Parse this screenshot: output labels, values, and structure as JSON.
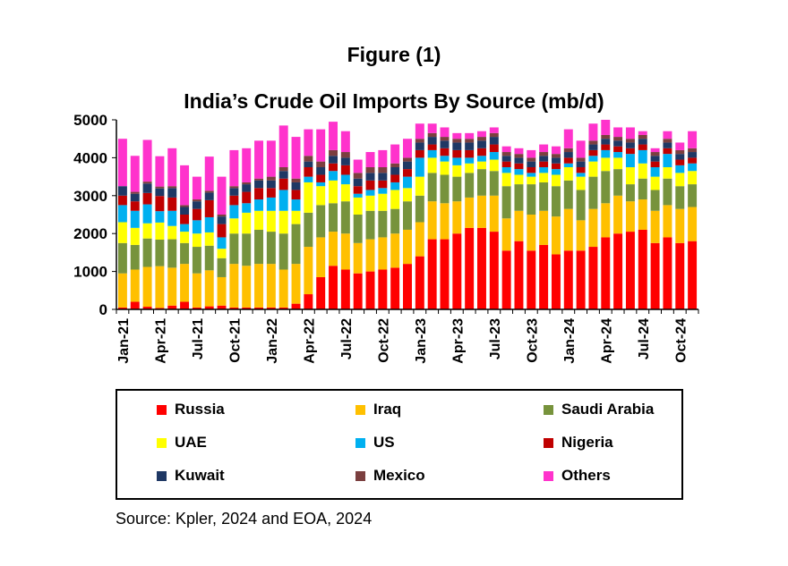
{
  "figure_label": "Figure (1)",
  "source": "Source: Kpler, 2024 and EOA, 2024",
  "chart_data": {
    "type": "bar",
    "stacked": true,
    "title": "India’s Crude Oil Imports By Source (mb/d)",
    "xlabel": "",
    "ylabel": "",
    "ylim": [
      0,
      5000
    ],
    "yticks": [
      0,
      1000,
      2000,
      3000,
      4000,
      5000
    ],
    "grid": false,
    "legend_position": "bottom",
    "x_tick_labels": [
      "Jan-21",
      "Apr-21",
      "Jul-21",
      "Oct-21",
      "Jan-22",
      "Apr-22",
      "Jul-22",
      "Oct-22",
      "Jan-23",
      "Apr-23",
      "Jul-23",
      "Oct-23",
      "Jan-24",
      "Apr-24",
      "Jul-24",
      "Oct-24"
    ],
    "categories": [
      "Jan-21",
      "Feb-21",
      "Mar-21",
      "Apr-21",
      "May-21",
      "Jun-21",
      "Jul-21",
      "Aug-21",
      "Sep-21",
      "Oct-21",
      "Nov-21",
      "Dec-21",
      "Jan-22",
      "Feb-22",
      "Mar-22",
      "Apr-22",
      "May-22",
      "Jun-22",
      "Jul-22",
      "Aug-22",
      "Sep-22",
      "Oct-22",
      "Nov-22",
      "Dec-22",
      "Jan-23",
      "Feb-23",
      "Mar-23",
      "Apr-23",
      "May-23",
      "Jun-23",
      "Jul-23",
      "Aug-23",
      "Sep-23",
      "Oct-23",
      "Nov-23",
      "Dec-23",
      "Jan-24",
      "Feb-24",
      "Mar-24",
      "Apr-24",
      "May-24",
      "Jun-24",
      "Jul-24",
      "Aug-24",
      "Sep-24",
      "Oct-24",
      "Nov-24"
    ],
    "series": [
      {
        "name": "Russia",
        "color": "#ff0000",
        "values": [
          50,
          200,
          70,
          40,
          100,
          200,
          50,
          80,
          100,
          50,
          50,
          50,
          50,
          50,
          150,
          400,
          850,
          1150,
          1050,
          950,
          1000,
          1050,
          1100,
          1200,
          1400,
          1850,
          1850,
          2000,
          2150,
          2150,
          2050,
          1550,
          1800,
          1550,
          1700,
          1450,
          1550,
          1550,
          1650,
          1900,
          2000,
          2050,
          2100,
          1750,
          1900,
          1750,
          1800
        ]
      },
      {
        "name": "Iraq",
        "color": "#ffc000",
        "values": [
          900,
          850,
          1050,
          1100,
          1000,
          1000,
          900,
          950,
          750,
          1150,
          1100,
          1150,
          1150,
          1000,
          1050,
          1250,
          1050,
          900,
          950,
          800,
          850,
          850,
          900,
          900,
          900,
          1000,
          950,
          850,
          800,
          850,
          950,
          850,
          800,
          950,
          900,
          1000,
          1100,
          800,
          1000,
          900,
          1000,
          800,
          800,
          850,
          850,
          900,
          900
        ]
      },
      {
        "name": "Saudi Arabia",
        "color": "#77933c",
        "values": [
          800,
          650,
          750,
          700,
          750,
          550,
          700,
          650,
          500,
          800,
          850,
          900,
          850,
          950,
          1050,
          900,
          850,
          750,
          850,
          750,
          750,
          700,
          650,
          750,
          700,
          750,
          750,
          650,
          650,
          700,
          650,
          850,
          700,
          800,
          750,
          800,
          750,
          800,
          850,
          850,
          700,
          450,
          550,
          550,
          700,
          600,
          600
        ]
      },
      {
        "name": "UAE",
        "color": "#ffff00",
        "values": [
          550,
          450,
          400,
          450,
          350,
          300,
          350,
          350,
          250,
          400,
          550,
          500,
          550,
          600,
          350,
          800,
          500,
          600,
          450,
          450,
          400,
          450,
          500,
          350,
          500,
          400,
          350,
          300,
          250,
          200,
          300,
          350,
          250,
          200,
          250,
          300,
          350,
          350,
          400,
          350,
          300,
          450,
          400,
          350,
          300,
          350,
          350
        ]
      },
      {
        "name": "US",
        "color": "#00b0f0",
        "values": [
          450,
          450,
          500,
          300,
          400,
          200,
          350,
          400,
          300,
          350,
          250,
          300,
          350,
          550,
          300,
          150,
          100,
          250,
          250,
          100,
          150,
          150,
          200,
          300,
          500,
          200,
          150,
          200,
          150,
          150,
          200,
          150,
          150,
          100,
          150,
          150,
          100,
          100,
          150,
          200,
          150,
          350,
          350,
          250,
          350,
          200,
          200
        ]
      },
      {
        "name": "Nigeria",
        "color": "#c00000",
        "values": [
          250,
          250,
          300,
          400,
          350,
          250,
          300,
          450,
          350,
          250,
          300,
          300,
          250,
          300,
          250,
          250,
          200,
          200,
          250,
          200,
          250,
          200,
          200,
          200,
          200,
          150,
          200,
          200,
          200,
          200,
          200,
          150,
          150,
          150,
          150,
          150,
          150,
          150,
          150,
          150,
          150,
          150,
          150,
          150,
          150,
          150,
          150
        ]
      },
      {
        "name": "Kuwait",
        "color": "#1f3864",
        "values": [
          250,
          200,
          250,
          200,
          250,
          200,
          200,
          200,
          200,
          200,
          200,
          200,
          200,
          200,
          200,
          150,
          200,
          200,
          200,
          200,
          200,
          200,
          200,
          200,
          200,
          200,
          200,
          200,
          200,
          200,
          200,
          150,
          150,
          150,
          150,
          150,
          150,
          150,
          150,
          150,
          150,
          150,
          150,
          150,
          150,
          150,
          150
        ]
      },
      {
        "name": "Mexico",
        "color": "#7b3f3f",
        "values": [
          0,
          50,
          50,
          50,
          50,
          50,
          50,
          50,
          50,
          50,
          50,
          50,
          100,
          100,
          100,
          150,
          150,
          150,
          150,
          150,
          150,
          150,
          100,
          100,
          100,
          100,
          100,
          100,
          100,
          100,
          100,
          100,
          100,
          100,
          100,
          100,
          100,
          100,
          100,
          100,
          100,
          100,
          100,
          100,
          100,
          100,
          100
        ]
      },
      {
        "name": "Others",
        "color": "#ff33cc",
        "values": [
          1250,
          950,
          1100,
          800,
          1000,
          1050,
          600,
          900,
          1000,
          950,
          900,
          1000,
          950,
          1100,
          1100,
          700,
          850,
          750,
          550,
          350,
          400,
          450,
          500,
          500,
          400,
          250,
          250,
          150,
          150,
          150,
          150,
          150,
          150,
          200,
          200,
          200,
          500,
          450,
          450,
          400,
          250,
          300,
          100,
          100,
          200,
          200,
          450
        ]
      }
    ]
  },
  "legend": [
    {
      "label": "Russia",
      "color": "#ff0000"
    },
    {
      "label": "Iraq",
      "color": "#ffc000"
    },
    {
      "label": "Saudi Arabia",
      "color": "#77933c"
    },
    {
      "label": "UAE",
      "color": "#ffff00"
    },
    {
      "label": "US",
      "color": "#00b0f0"
    },
    {
      "label": "Nigeria",
      "color": "#c00000"
    },
    {
      "label": "Kuwait",
      "color": "#1f3864"
    },
    {
      "label": "Mexico",
      "color": "#7b3f3f"
    },
    {
      "label": "Others",
      "color": "#ff33cc"
    }
  ]
}
